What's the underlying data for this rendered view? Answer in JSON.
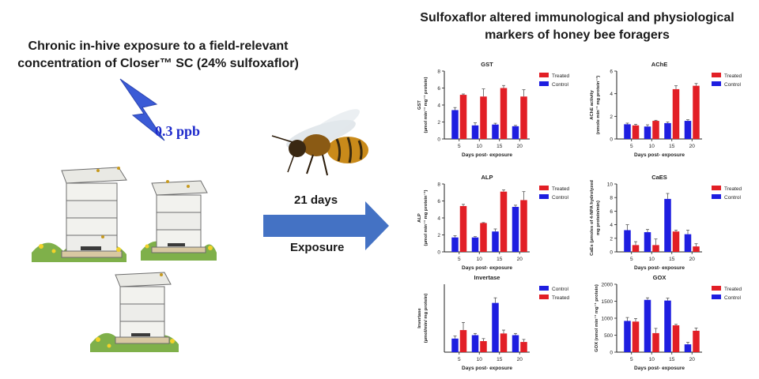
{
  "header": {
    "left_title_line1": "Chronic in-hive exposure to a field-relevant",
    "left_title_line2": "concentration of Closer™ SC (24% sulfoxaflor)",
    "right_title_line1": "Sulfoxaflor altered immunological and physiological",
    "right_title_line2": "markers of honey bee foragers",
    "dose": "0.3 ppb",
    "duration": "21 days",
    "arrow_label": "Exposure"
  },
  "colors": {
    "treated": "#e21f26",
    "control": "#1e1ee0",
    "arrow": "#4472c4",
    "lightning": "#3b5bd6"
  },
  "chart_data": [
    {
      "id": "gst",
      "type": "bar",
      "title": "GST",
      "ylabel": [
        "GST",
        "(µmol min⁻¹ mg⁻¹ protein)"
      ],
      "xlabel": "Days post- exposure",
      "categories": [
        "5",
        "10",
        "15",
        "20"
      ],
      "ylim": [
        0,
        8
      ],
      "yticks": [
        0,
        2,
        4,
        6,
        8
      ],
      "legend": [
        "Treated",
        "Control"
      ],
      "series": [
        {
          "name": "Control",
          "color": "#1e1ee0",
          "values": [
            3.4,
            1.6,
            1.7,
            1.5
          ],
          "errors": [
            0.3,
            0.3,
            0.15,
            0.1
          ]
        },
        {
          "name": "Treated",
          "color": "#e21f26",
          "values": [
            5.2,
            5.0,
            6.0,
            5.0
          ],
          "errors": [
            0.1,
            0.9,
            0.3,
            0.8
          ]
        }
      ]
    },
    {
      "id": "ache",
      "type": "bar",
      "title": "AChE",
      "ylabel": [
        "AChE activity",
        "(nmole min⁻¹ mg protein⁻¹)"
      ],
      "xlabel": "Days post- exposure",
      "categories": [
        "5",
        "10",
        "15",
        "20"
      ],
      "ylim": [
        0,
        6
      ],
      "yticks": [
        0,
        2,
        4,
        6
      ],
      "legend": [
        "Treated",
        "Control"
      ],
      "series": [
        {
          "name": "Control",
          "color": "#1e1ee0",
          "values": [
            1.3,
            1.1,
            1.4,
            1.6
          ],
          "errors": [
            0.1,
            0.15,
            0.1,
            0.1
          ]
        },
        {
          "name": "Treated",
          "color": "#e21f26",
          "values": [
            1.2,
            1.6,
            4.4,
            4.7
          ],
          "errors": [
            0.1,
            0.05,
            0.3,
            0.2
          ]
        }
      ]
    },
    {
      "id": "alp",
      "type": "bar",
      "title": "ALP",
      "ylabel": [
        "ALP",
        "(µmol min⁻¹ mg protein⁻¹)"
      ],
      "xlabel": "Days post- exposure",
      "categories": [
        "5",
        "10",
        "15",
        "20"
      ],
      "ylim": [
        0,
        8
      ],
      "yticks": [
        0,
        2,
        4,
        6,
        8
      ],
      "legend": [
        "Treated",
        "Control"
      ],
      "series": [
        {
          "name": "Control",
          "color": "#1e1ee0",
          "values": [
            1.7,
            1.7,
            2.4,
            5.3
          ],
          "errors": [
            0.2,
            0.1,
            0.3,
            0.2
          ]
        },
        {
          "name": "Treated",
          "color": "#e21f26",
          "values": [
            5.4,
            3.4,
            7.1,
            6.1
          ],
          "errors": [
            0.2,
            0.05,
            0.2,
            1.0
          ]
        }
      ]
    },
    {
      "id": "caes",
      "type": "bar",
      "title": "CaES",
      "ylabel": [
        "CaEs (µmoles of 4-NPA hydrolyzed",
        "mg protein/min)"
      ],
      "xlabel": "Days post- exposure",
      "categories": [
        "5",
        "10",
        "15",
        "20"
      ],
      "ylim": [
        0,
        10
      ],
      "yticks": [
        0,
        2,
        4,
        6,
        8,
        10
      ],
      "legend": [
        "Treated",
        "Control"
      ],
      "series": [
        {
          "name": "Control",
          "color": "#1e1ee0",
          "values": [
            3.2,
            2.9,
            7.8,
            2.6
          ],
          "errors": [
            0.8,
            0.4,
            0.8,
            0.6
          ]
        },
        {
          "name": "Treated",
          "color": "#e21f26",
          "values": [
            1.0,
            1.0,
            3.0,
            0.8
          ],
          "errors": [
            0.5,
            0.9,
            0.2,
            0.4
          ]
        }
      ]
    },
    {
      "id": "invertase",
      "type": "bar",
      "title": "Invertase",
      "ylabel": [
        "Invertase",
        "(µmol/min/ mg protein)"
      ],
      "xlabel": "Days post- exposure",
      "categories": [
        "5",
        "10",
        "15",
        "20"
      ],
      "ylim": [
        0,
        8
      ],
      "yticks": [],
      "legend": [
        "Control",
        "Treated"
      ],
      "series": [
        {
          "name": "Control",
          "color": "#1e1ee0",
          "values": [
            1.6,
            2.0,
            5.8,
            2.0
          ],
          "errors": [
            0.3,
            0.2,
            0.6,
            0.2
          ]
        },
        {
          "name": "Treated",
          "color": "#e21f26",
          "values": [
            2.6,
            1.3,
            2.2,
            1.2
          ],
          "errors": [
            0.9,
            0.3,
            0.4,
            0.3
          ]
        }
      ]
    },
    {
      "id": "gox",
      "type": "bar",
      "title": "GOX",
      "ylabel": [
        "GOX (nmol min⁻¹ mg⁻¹ protein)"
      ],
      "xlabel": "Days post- exposure",
      "categories": [
        "5",
        "10",
        "15",
        "20"
      ],
      "ylim": [
        0,
        2000
      ],
      "yticks": [
        0,
        500,
        1000,
        1500,
        2000
      ],
      "legend": [
        "Treated",
        "Control"
      ],
      "series": [
        {
          "name": "Control",
          "color": "#1e1ee0",
          "values": [
            920,
            1540,
            1520,
            230
          ],
          "errors": [
            100,
            60,
            70,
            60
          ]
        },
        {
          "name": "Treated",
          "color": "#e21f26",
          "values": [
            900,
            560,
            790,
            630
          ],
          "errors": [
            90,
            140,
            30,
            80
          ]
        }
      ]
    }
  ]
}
